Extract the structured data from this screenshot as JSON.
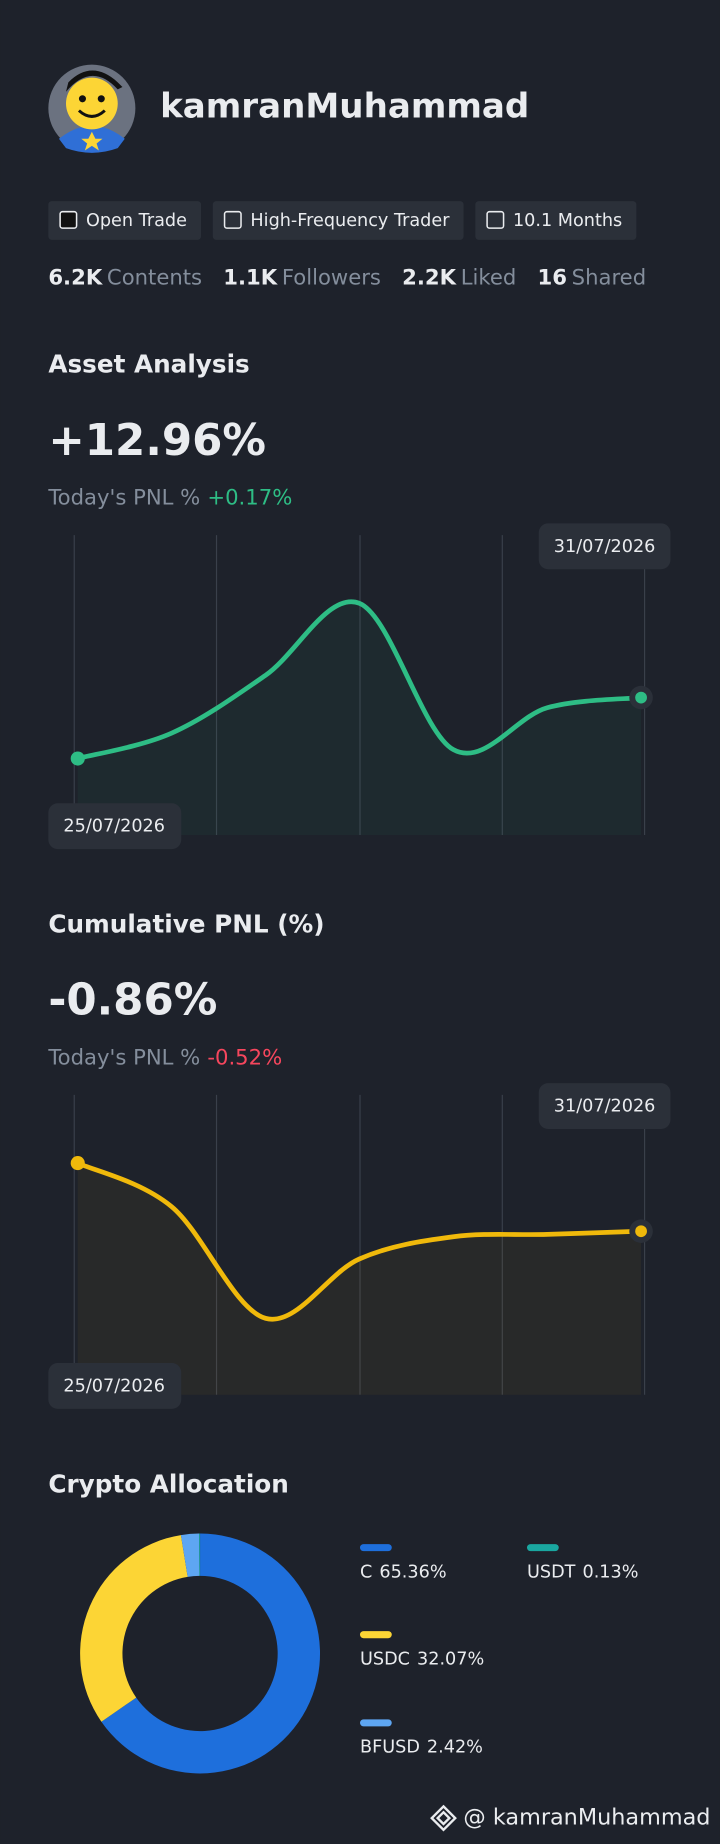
{
  "profile": {
    "name": "kamranMuhammad",
    "tags": [
      "Open Trade",
      "High-Frequency Trader",
      "10.1 Months"
    ],
    "stats": [
      {
        "value": "6.2K",
        "label": "Contents"
      },
      {
        "value": "1.1K",
        "label": "Followers"
      },
      {
        "value": "2.2K",
        "label": "Liked"
      },
      {
        "value": "16",
        "label": "Shared"
      }
    ]
  },
  "asset_analysis": {
    "title": "Asset Analysis",
    "value": "+12.96%",
    "today_label": "Today's PNL %",
    "today_value": "+0.17%",
    "start_date": "25/07/2026",
    "end_date": "31/07/2026",
    "color": "#2ebd85",
    "values": [
      0,
      5.4,
      17.7,
      33.0,
      1.9,
      10.8,
      12.96
    ]
  },
  "cumulative_pnl": {
    "title": "Cumulative PNL (%)",
    "value": "-0.86%",
    "today_label": "Today's PNL %",
    "today_value": "-0.52%",
    "start_date": "25/07/2026",
    "end_date": "31/07/2026",
    "color": "#f0b90b",
    "values": [
      0,
      -0.55,
      -1.96,
      -1.21,
      -0.93,
      -0.9,
      -0.86
    ]
  },
  "allocation": {
    "title": "Crypto Allocation",
    "items": [
      {
        "name": "C",
        "value": 65.36,
        "label": "65.36%",
        "color": "#1e6fdc"
      },
      {
        "name": "USDC",
        "value": 32.07,
        "label": "32.07%",
        "color": "#fcd535"
      },
      {
        "name": "BFUSD",
        "value": 2.42,
        "label": "2.42%",
        "color": "#5ea6f2"
      },
      {
        "name": "USDT",
        "value": 0.13,
        "label": "0.13%",
        "color": "#1aa7a0"
      }
    ]
  },
  "footer": {
    "handle": "@ kamranMuhammad"
  }
}
